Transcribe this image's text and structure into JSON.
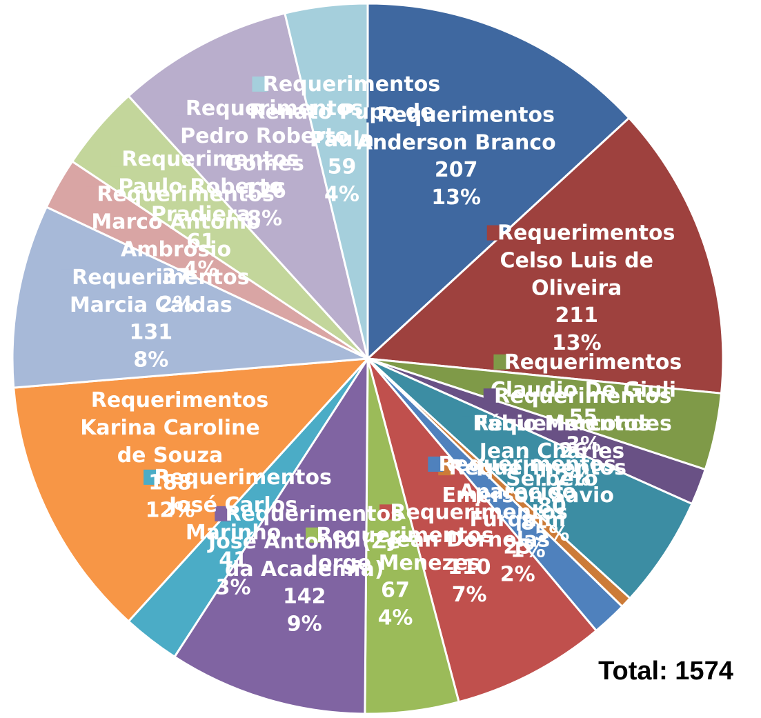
{
  "chart_data": {
    "type": "pie",
    "annotation": "Total: 1574",
    "categories": [
      "Requerimentos Anderson Branco",
      "Requerimentos Celso Luis de Oliveira",
      "Requerimentos Claudio De Giuli",
      "Requerimentos Fábio Marcondes",
      "Requerimentos Jean Charles Serbeto",
      "Requerimentos Emerson Savio",
      "Requerimentos Aparecido Furquim",
      "Requerimentos Jean Dornelas",
      "Requerimentos Jorge Menezes",
      "Requerimentos José Antonio (Zé da Academia)",
      "Requerimentos José Carlos Marinho",
      "Requerimentos Karina Caroline de Souza",
      "Requerimentos Marcia Caldas",
      "Requerimentos Marco Antonio Ambrosio",
      "Requerimentos Paulo Roberto Pradiera",
      "Requerimentos Pedro Roberto Gomes",
      "Requerimentos Renato Pupo de Paula"
    ],
    "values": [
      207,
      211,
      55,
      26,
      80,
      8,
      25,
      110,
      67,
      142,
      41,
      188,
      131,
      37,
      61,
      126,
      59
    ],
    "percent_labels": [
      "13%",
      "13%",
      "3%",
      "2%",
      "5%",
      "1%",
      "2%",
      "7%",
      "4%",
      "9%",
      "3%",
      "12%",
      "8%",
      "2%",
      "4%",
      "8%",
      "4%"
    ],
    "colors": [
      "#3f68a0",
      "#9e413e",
      "#7f9a48",
      "#695185",
      "#3c8da3",
      "#cc7b38",
      "#4f81bd",
      "#c0504d",
      "#9bbb59",
      "#8064a2",
      "#4bacc6",
      "#f79646",
      "#a7b9d8",
      "#d9a5a4",
      "#c3d69b",
      "#b9aecc",
      "#a5cfdc"
    ]
  }
}
